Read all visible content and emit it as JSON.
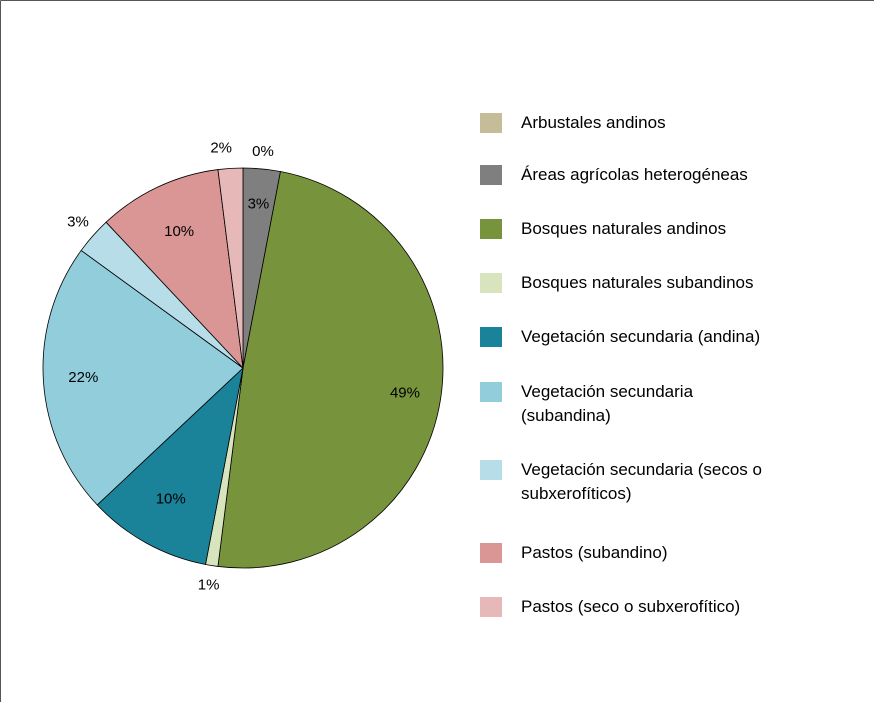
{
  "chart_data": {
    "type": "pie",
    "categories": [
      "Arbustales andinos",
      "Áreas agrícolas heterogéneas",
      "Bosques naturales andinos",
      "Bosques naturales subandinos",
      "Vegetación secundaria (andina)",
      "Vegetación secundaria (subandina)",
      "Vegetación secundaria (secos o subxerofíticos)",
      "Pastos (subandino)",
      "Pastos (seco o subxerofítico)"
    ],
    "values": [
      0,
      3,
      49,
      1,
      10,
      22,
      3,
      10,
      2
    ],
    "value_labels": [
      "0%",
      "3%",
      "49%",
      "1%",
      "10%",
      "22%",
      "3%",
      "10%",
      "2%"
    ],
    "colors": [
      "#c4bd97",
      "#7f7f7f",
      "#77933c",
      "#d7e4bd",
      "#1a8299",
      "#92cddc",
      "#b7dee8",
      "#d99694",
      "#e6b9b8"
    ],
    "legend": "right"
  }
}
